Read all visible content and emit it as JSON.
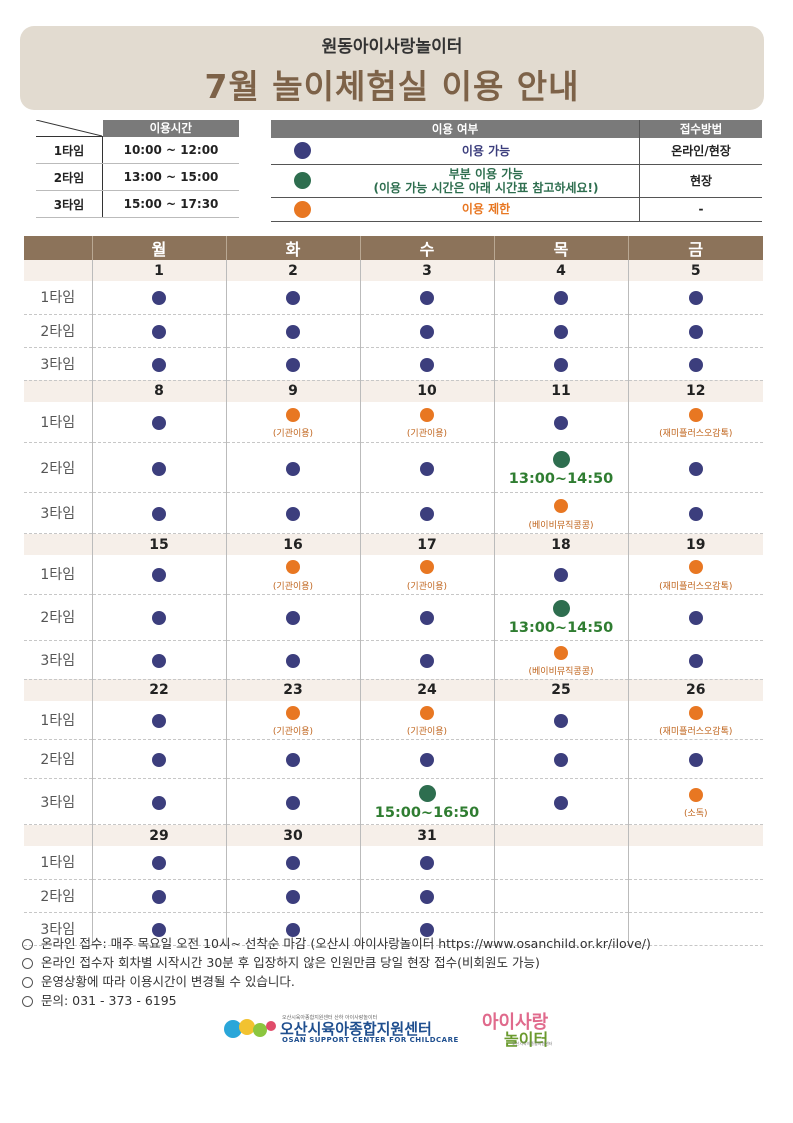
{
  "header": {
    "subtitle": "원동아이사랑놀이터",
    "title": "7월  놀이체험실  이용  안내"
  },
  "colors": {
    "available": "#3c3e7d",
    "partial": "#2e6e4f",
    "restricted": "#e87722",
    "header_bg": "#e2dbd0",
    "title": "#7d6248",
    "cal_head": "#8c735a"
  },
  "time_table": {
    "header": "이용시간",
    "rows": [
      {
        "label": "1타임",
        "time": "10:00 ~ 12:00"
      },
      {
        "label": "2타임",
        "time": "13:00 ~ 15:00"
      },
      {
        "label": "3타임",
        "time": "15:00 ~ 17:30"
      }
    ]
  },
  "legend": {
    "header_use": "이용 여부",
    "header_method": "접수방법",
    "rows": [
      {
        "status": "available",
        "text": "이용 가능",
        "text2": "",
        "method": "온라인/현장"
      },
      {
        "status": "partial",
        "text": "부분 이용 가능",
        "text2": "(이용 가능 시간은 아래 시간표 참고하세요!)",
        "method": "현장"
      },
      {
        "status": "restricted",
        "text": "이용 제한",
        "text2": "",
        "method": "-"
      }
    ]
  },
  "calendar": {
    "days": [
      "월",
      "화",
      "수",
      "목",
      "금"
    ],
    "slot_labels": [
      "1타임",
      "2타임",
      "3타임"
    ],
    "weeks": [
      {
        "dates": [
          "1",
          "2",
          "3",
          "4",
          "5"
        ],
        "slots": [
          [
            {
              "s": "a"
            },
            {
              "s": "a"
            },
            {
              "s": "a"
            },
            {
              "s": "a"
            },
            {
              "s": "a"
            }
          ],
          [
            {
              "s": "a"
            },
            {
              "s": "a"
            },
            {
              "s": "a"
            },
            {
              "s": "a"
            },
            {
              "s": "a"
            }
          ],
          [
            {
              "s": "a"
            },
            {
              "s": "a"
            },
            {
              "s": "a"
            },
            {
              "s": "a"
            },
            {
              "s": "a"
            }
          ]
        ]
      },
      {
        "dates": [
          "8",
          "9",
          "10",
          "11",
          "12"
        ],
        "slots": [
          [
            {
              "s": "a"
            },
            {
              "s": "r",
              "note": "(기관이용)"
            },
            {
              "s": "r",
              "note": "(기관이용)"
            },
            {
              "s": "a"
            },
            {
              "s": "r",
              "note": "(재미플러스오감톡)"
            }
          ],
          [
            {
              "s": "a"
            },
            {
              "s": "a"
            },
            {
              "s": "a"
            },
            {
              "s": "p",
              "time": "13:00~14:50"
            },
            {
              "s": "a"
            }
          ],
          [
            {
              "s": "a"
            },
            {
              "s": "a"
            },
            {
              "s": "a"
            },
            {
              "s": "r",
              "note": "(베이비뮤직콩콩)"
            },
            {
              "s": "a"
            }
          ]
        ]
      },
      {
        "dates": [
          "15",
          "16",
          "17",
          "18",
          "19"
        ],
        "slots": [
          [
            {
              "s": "a"
            },
            {
              "s": "r",
              "note": "(기관이용)"
            },
            {
              "s": "r",
              "note": "(기관이용)"
            },
            {
              "s": "a"
            },
            {
              "s": "r",
              "note": "(재미플러스오감톡)"
            }
          ],
          [
            {
              "s": "a"
            },
            {
              "s": "a"
            },
            {
              "s": "a"
            },
            {
              "s": "p",
              "time": "13:00~14:50"
            },
            {
              "s": "a"
            }
          ],
          [
            {
              "s": "a"
            },
            {
              "s": "a"
            },
            {
              "s": "a"
            },
            {
              "s": "r",
              "note": "(베이비뮤직콩콩)"
            },
            {
              "s": "a"
            }
          ]
        ]
      },
      {
        "dates": [
          "22",
          "23",
          "24",
          "25",
          "26"
        ],
        "slots": [
          [
            {
              "s": "a"
            },
            {
              "s": "r",
              "note": "(기관이용)"
            },
            {
              "s": "r",
              "note": "(기관이용)"
            },
            {
              "s": "a"
            },
            {
              "s": "r",
              "note": "(재미플러스오감톡)"
            }
          ],
          [
            {
              "s": "a"
            },
            {
              "s": "a"
            },
            {
              "s": "a"
            },
            {
              "s": "a"
            },
            {
              "s": "a"
            }
          ],
          [
            {
              "s": "a"
            },
            {
              "s": "a"
            },
            {
              "s": "p",
              "time": "15:00~16:50"
            },
            {
              "s": "a"
            },
            {
              "s": "r",
              "note": "(소독)"
            }
          ]
        ]
      },
      {
        "dates": [
          "29",
          "30",
          "31",
          "",
          ""
        ],
        "slots": [
          [
            {
              "s": "a"
            },
            {
              "s": "a"
            },
            {
              "s": "a"
            },
            {
              "s": ""
            },
            {
              "s": ""
            }
          ],
          [
            {
              "s": "a"
            },
            {
              "s": "a"
            },
            {
              "s": "a"
            },
            {
              "s": ""
            },
            {
              "s": ""
            }
          ],
          [
            {
              "s": "a"
            },
            {
              "s": "a"
            },
            {
              "s": "a"
            },
            {
              "s": ""
            },
            {
              "s": ""
            }
          ]
        ]
      }
    ]
  },
  "notes": [
    "온라인 접수: 매주 목요일 오전 10시~ 선착순 마감 (오산시 아이사랑놀이터 https://www.osanchild.or.kr/ilove/)",
    "온라인 접수자 회차별 시작시간 30분 후 입장하지 않은 인원만큼 당일 현장 접수(비회원도 가능)",
    "운영상황에 따라 이용시간이 변경될 수 있습니다.",
    "문의: 031 - 373 - 6195"
  ],
  "logos": {
    "center_small": "오산시육아종합지원센터 산하 아이사랑놀이터",
    "center_name": "오산시육아종합지원센터",
    "center_en": "OSAN SUPPORT CENTER FOR CHILDCARE",
    "playground_a": "아이사랑",
    "playground_b": "놀이터",
    "playground_c": "오산시육아종합지원센터"
  }
}
